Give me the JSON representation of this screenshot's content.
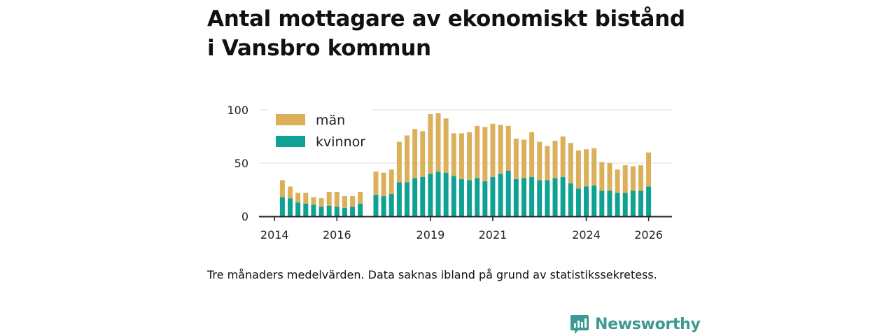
{
  "title_line1": "Antal mottagare av ekonomiskt bistånd",
  "title_line2": "i Vansbro kommun",
  "note": "Tre månaders medelvärden. Data saknas ibland på grund av statistikssekretess.",
  "brand": {
    "name": "Newsworthy",
    "color": "#3d9a92"
  },
  "colors": {
    "man": "#dcb05a",
    "kvinnor": "#0fa193",
    "grid": "#dddddd",
    "axis": "#222222"
  },
  "chart_data": {
    "type": "bar",
    "stacked": true,
    "title": "Antal mottagare av ekonomiskt bistånd i Vansbro kommun",
    "ylim": [
      0,
      100
    ],
    "yticks": [
      0,
      50,
      100
    ],
    "xticks": [
      {
        "label": "2014",
        "x": 2014.0
      },
      {
        "label": "2016",
        "x": 2016.0
      },
      {
        "label": "2019",
        "x": 2019.0
      },
      {
        "label": "2021",
        "x": 2021.0
      },
      {
        "label": "2024",
        "x": 2024.0
      },
      {
        "label": "2026",
        "x": 2026.0
      }
    ],
    "xlim": [
      2013.5,
      2026.75
    ],
    "x": [
      2014.25,
      2014.5,
      2014.75,
      2015.0,
      2015.25,
      2015.5,
      2015.75,
      2016.0,
      2016.25,
      2016.5,
      2016.75,
      2017.25,
      2017.5,
      2017.75,
      2018.0,
      2018.25,
      2018.5,
      2018.75,
      2019.0,
      2019.25,
      2019.5,
      2019.75,
      2020.0,
      2020.25,
      2020.5,
      2020.75,
      2021.0,
      2021.25,
      2021.5,
      2021.75,
      2022.0,
      2022.25,
      2022.5,
      2022.75,
      2023.0,
      2023.25,
      2023.5,
      2023.75,
      2024.0,
      2024.25,
      2024.5,
      2024.75,
      2025.0,
      2025.25,
      2025.5,
      2025.75,
      2026.0
    ],
    "series": [
      {
        "name": "kvinnor",
        "values": [
          18,
          17,
          13,
          12,
          11,
          9,
          10,
          9,
          8,
          9,
          12,
          20,
          19,
          21,
          32,
          32,
          36,
          37,
          40,
          42,
          41,
          38,
          35,
          34,
          36,
          33,
          37,
          40,
          43,
          35,
          36,
          37,
          34,
          34,
          36,
          37,
          31,
          26,
          28,
          29,
          24,
          24,
          22,
          22,
          24,
          24,
          28
        ]
      },
      {
        "name": "män",
        "values": [
          16,
          11,
          9,
          10,
          7,
          8,
          13,
          14,
          11,
          10,
          11,
          22,
          22,
          23,
          38,
          44,
          46,
          43,
          56,
          55,
          51,
          40,
          43,
          45,
          49,
          51,
          50,
          46,
          42,
          38,
          36,
          42,
          36,
          32,
          35,
          38,
          38,
          36,
          35,
          35,
          27,
          26,
          22,
          26,
          23,
          24,
          32
        ]
      }
    ],
    "legend": [
      "män",
      "kvinnor"
    ],
    "legend_position": "top-left"
  }
}
